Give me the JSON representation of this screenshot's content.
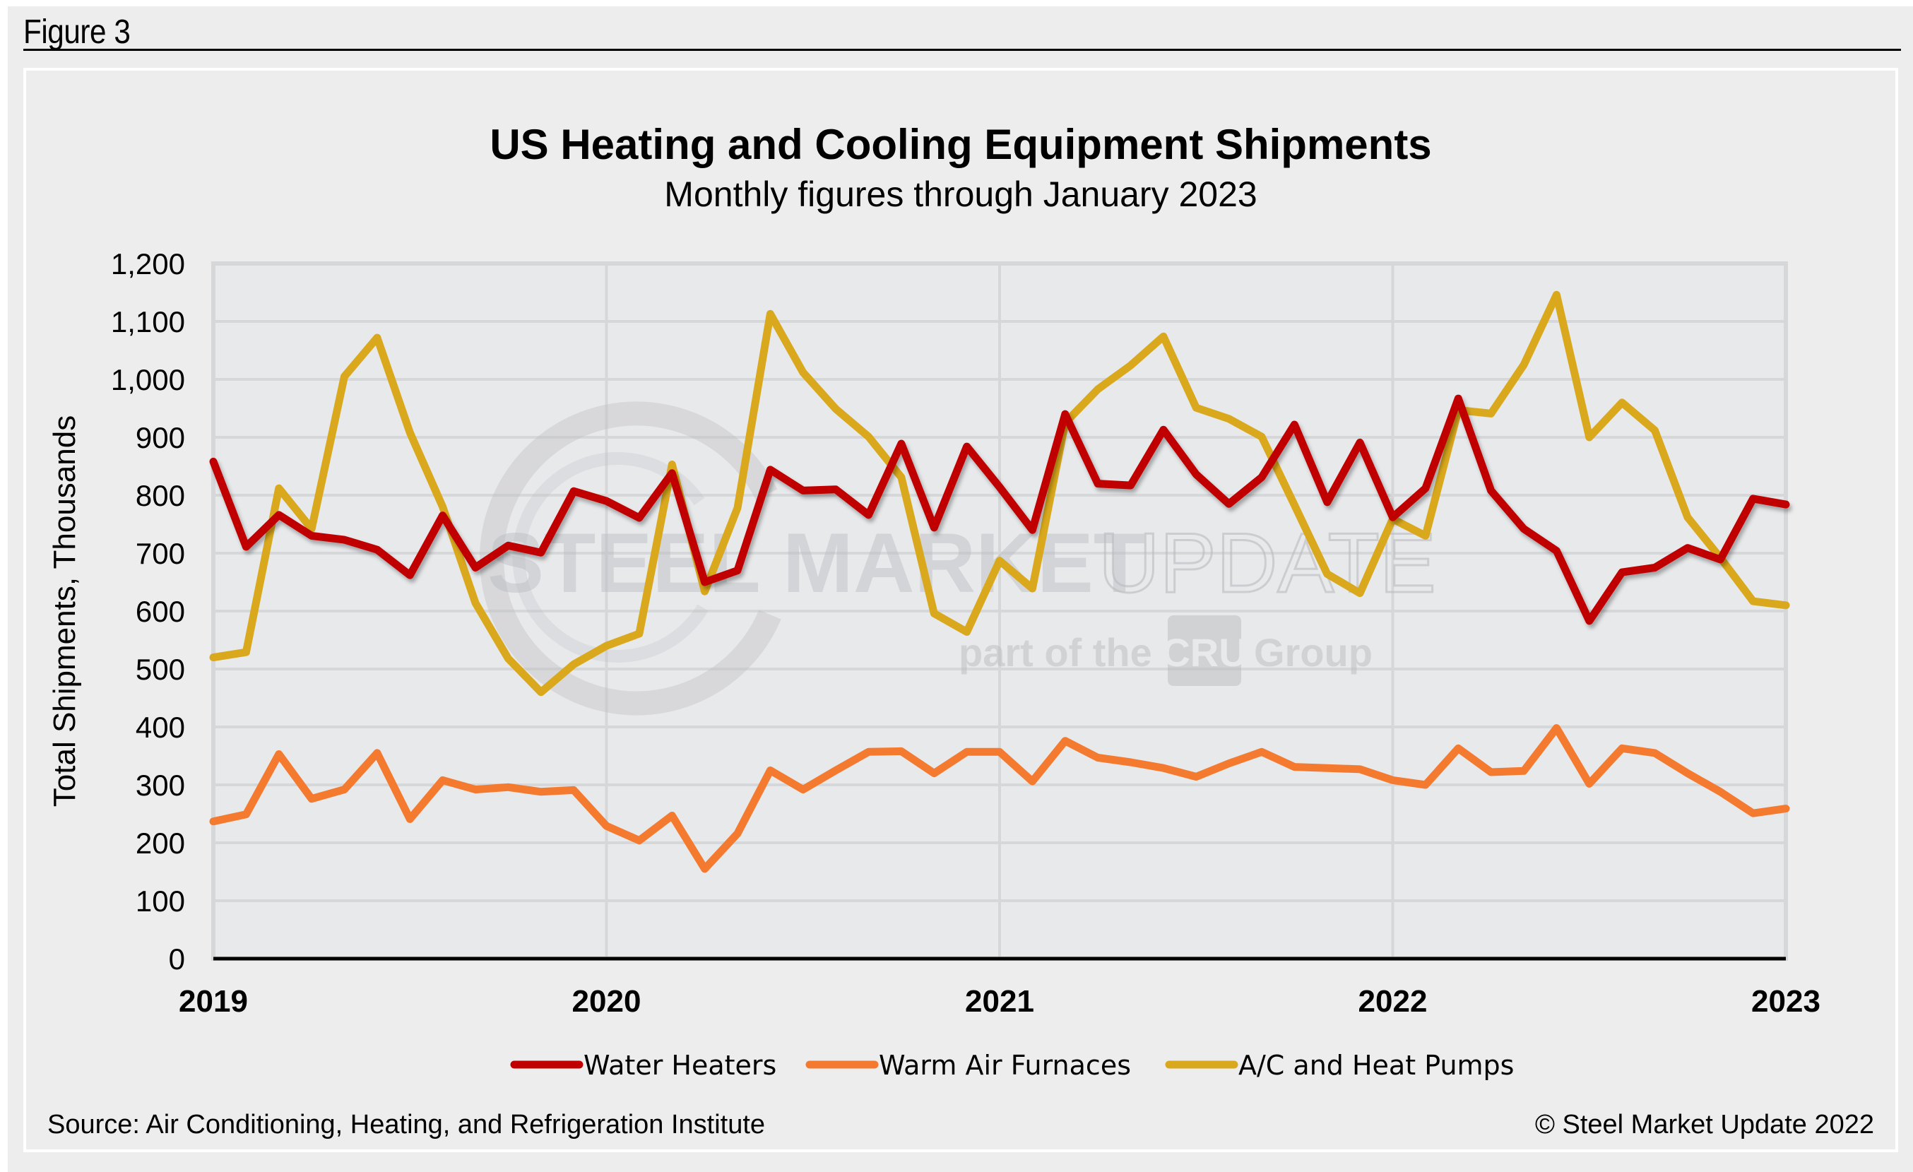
{
  "figure_label": "Figure 3",
  "watermark": {
    "brand_bold": "STEEL MARKET",
    "brand_light": "UPDATE",
    "tagline_pre": "part of the",
    "tagline_logo": "CRU",
    "tagline_post": "Group"
  },
  "footer": {
    "source": "Source: Air Conditioning, Heating, and Refrigeration Institute",
    "copyright": "© Steel Market Update 2022"
  },
  "chart_data": {
    "type": "line",
    "title": "US Heating and Cooling Equipment Shipments",
    "subtitle": "Monthly figures through January 2023",
    "xlabel": "",
    "ylabel": "Total Shipments, Thousands",
    "ylim": [
      0,
      1200
    ],
    "yticks": [
      0,
      100,
      200,
      300,
      400,
      500,
      600,
      700,
      800,
      900,
      1000,
      1100,
      1200
    ],
    "ytick_labels": [
      "0",
      "100",
      "200",
      "300",
      "400",
      "500",
      "600",
      "700",
      "800",
      "900",
      "1,000",
      "1,100",
      "1,200"
    ],
    "xtick_labels": [
      "2019",
      "2020",
      "2021",
      "2022",
      "2023"
    ],
    "grid": true,
    "legend_position": "bottom",
    "x": [
      "2019-01",
      "2019-02",
      "2019-03",
      "2019-04",
      "2019-05",
      "2019-06",
      "2019-07",
      "2019-08",
      "2019-09",
      "2019-10",
      "2019-11",
      "2019-12",
      "2020-01",
      "2020-02",
      "2020-03",
      "2020-04",
      "2020-05",
      "2020-06",
      "2020-07",
      "2020-08",
      "2020-09",
      "2020-10",
      "2020-11",
      "2020-12",
      "2021-01",
      "2021-02",
      "2021-03",
      "2021-04",
      "2021-05",
      "2021-06",
      "2021-07",
      "2021-08",
      "2021-09",
      "2021-10",
      "2021-11",
      "2021-12",
      "2022-01",
      "2022-02",
      "2022-03",
      "2022-04",
      "2022-05",
      "2022-06",
      "2022-07",
      "2022-08",
      "2022-09",
      "2022-10",
      "2022-11",
      "2022-12",
      "2023-01"
    ],
    "series": [
      {
        "name": "Water Heaters",
        "color": "#c00000",
        "values": [
          858,
          711,
          766,
          730,
          723,
          706,
          662,
          765,
          675,
          713,
          701,
          807,
          790,
          761,
          838,
          650,
          670,
          844,
          808,
          810,
          766,
          889,
          744,
          884,
          814,
          740,
          940,
          820,
          817,
          913,
          836,
          785,
          831,
          922,
          788,
          891,
          762,
          812,
          967,
          808,
          742,
          704,
          583,
          667,
          675,
          709,
          689,
          794,
          784
        ]
      },
      {
        "name": "Warm Air Furnaces",
        "color": "#f47a30",
        "values": [
          237,
          249,
          353,
          276,
          292,
          355,
          241,
          308,
          292,
          296,
          288,
          291,
          229,
          204,
          247,
          155,
          216,
          325,
          292,
          325,
          357,
          358,
          320,
          357,
          357,
          306,
          376,
          347,
          339,
          329,
          314,
          337,
          357,
          331,
          329,
          327,
          308,
          300,
          363,
          322,
          324,
          398,
          302,
          363,
          355,
          320,
          288,
          251,
          259
        ]
      },
      {
        "name": "A/C and Heat Pumps",
        "color": "#d9a81c",
        "values": [
          520,
          529,
          812,
          742,
          1005,
          1072,
          908,
          780,
          614,
          518,
          460,
          508,
          540,
          561,
          853,
          634,
          778,
          1113,
          1012,
          949,
          901,
          831,
          596,
          564,
          687,
          639,
          925,
          983,
          1024,
          1074,
          951,
          932,
          901,
          783,
          664,
          631,
          759,
          730,
          947,
          941,
          1025,
          1146,
          900,
          960,
          912,
          762,
          692,
          617,
          610
        ]
      }
    ]
  }
}
